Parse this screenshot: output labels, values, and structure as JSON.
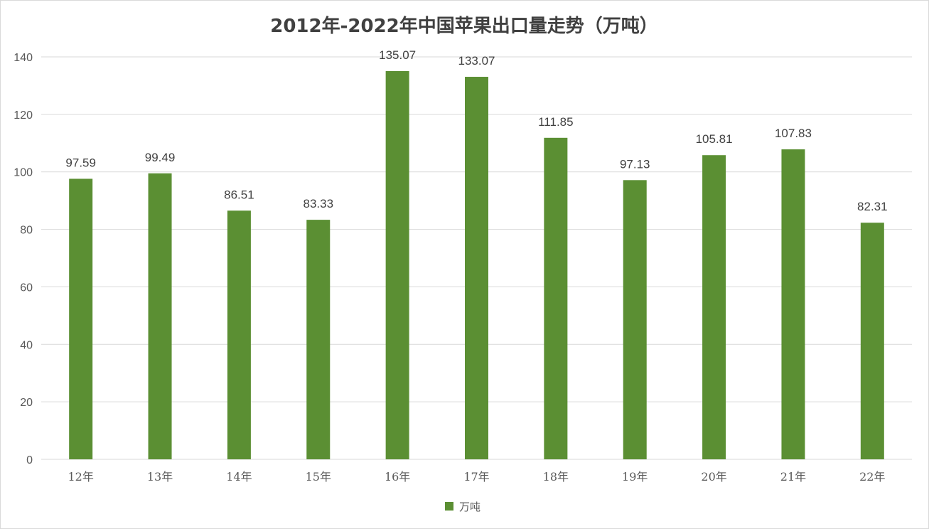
{
  "chart_data": {
    "type": "bar",
    "title": "2012年-2022年中国苹果出口量走势（万吨）",
    "categories": [
      "12年",
      "13年",
      "14年",
      "15年",
      "16年",
      "17年",
      "18年",
      "19年",
      "20年",
      "21年",
      "22年"
    ],
    "series": [
      {
        "name": "万吨",
        "color": "#5b8f33",
        "values": [
          97.59,
          99.49,
          86.51,
          83.33,
          135.07,
          133.07,
          111.85,
          97.13,
          105.81,
          107.83,
          82.31
        ],
        "labels": [
          "97.59",
          "99.49",
          "86.51",
          "83.33",
          "135.07",
          "133.07",
          "111.85",
          "97.13",
          "105.81",
          "107.83",
          "82.31"
        ]
      }
    ],
    "ylim": [
      0,
      140
    ],
    "yticks": [
      "0",
      "20",
      "40",
      "60",
      "80",
      "100",
      "120",
      "140"
    ],
    "grid": true,
    "legend": "bottom"
  }
}
